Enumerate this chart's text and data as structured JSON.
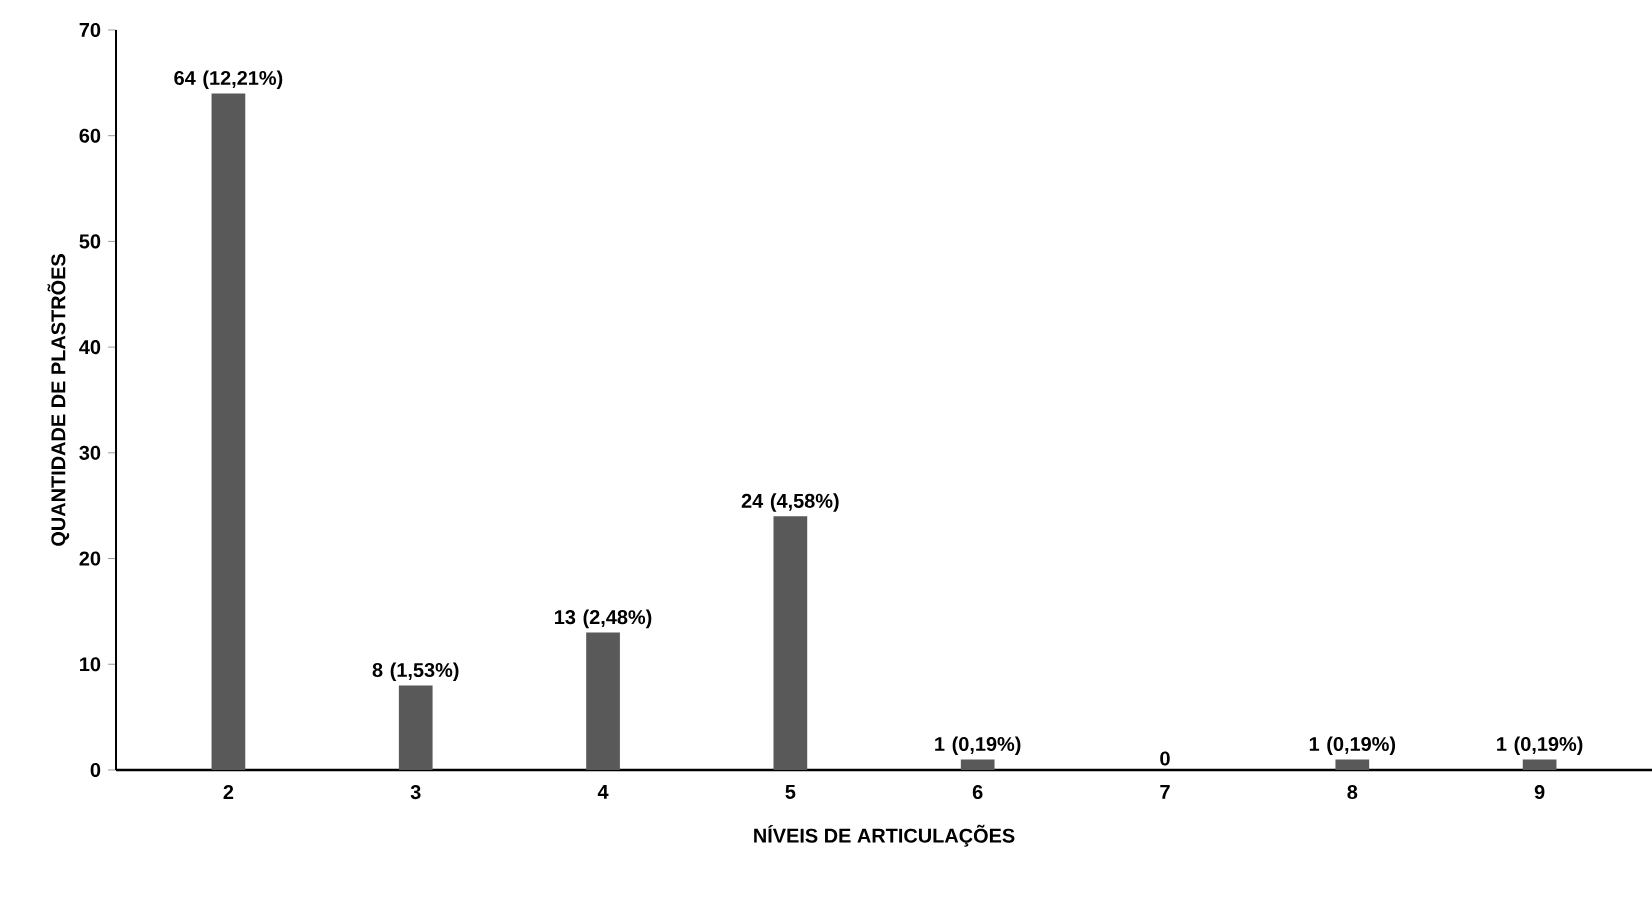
{
  "chart_data": {
    "type": "bar",
    "xlabel": "NÍVEIS DE ARTICULAÇÕES",
    "ylabel": "QUANTIDADE DE PLASTRÕES",
    "categories": [
      "2",
      "3",
      "4",
      "5",
      "6",
      "7",
      "8",
      "9"
    ],
    "values": [
      64,
      8,
      13,
      24,
      1,
      0,
      1,
      1
    ],
    "value_labels": [
      "64 (12,21%)",
      "8 (1,53%)",
      "13 (2,48%)",
      "24 (4,58%)",
      "1 (0,19%)",
      "0",
      "1 (0,19%)",
      "1 (0,19%)"
    ],
    "color": "#595959",
    "ylim": [
      0,
      70
    ],
    "yticks": [
      0,
      10,
      20,
      30,
      40,
      50,
      60,
      70
    ],
    "grid": false
  }
}
